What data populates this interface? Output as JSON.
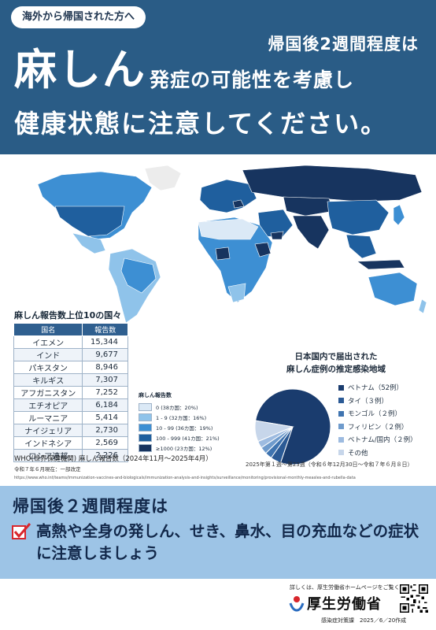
{
  "header": {
    "pill": "海外から帰国された方へ",
    "line1": "帰国後2週間程度は",
    "measles": "麻しん",
    "line2": "発症の可能性を考慮し",
    "line3": "健康状態に注意してください。"
  },
  "ranking": {
    "title": "麻しん報告数上位10の国々",
    "col_country": "国名",
    "col_count": "報告数",
    "rows": [
      {
        "country": "イエメン",
        "count": "15,344"
      },
      {
        "country": "インド",
        "count": "9,677"
      },
      {
        "country": "パキスタン",
        "count": "8,946"
      },
      {
        "country": "キルギス",
        "count": "7,307"
      },
      {
        "country": "アフガニスタン",
        "count": "7,252"
      },
      {
        "country": "エチオピア",
        "count": "6,184"
      },
      {
        "country": "ルーマニア",
        "count": "5,414"
      },
      {
        "country": "ナイジェリア",
        "count": "2,730"
      },
      {
        "country": "インドネシア",
        "count": "2,569"
      },
      {
        "country": "ロシア連邦",
        "count": "2,226"
      }
    ],
    "source": "WHO(世界保健機関) 麻しん報告数（2024年11月～2025年4月）",
    "note": "令和７年６月現在：一部改定"
  },
  "map_legend": {
    "title": "麻しん報告数",
    "items": [
      {
        "label": "0 (38カ国：20%)",
        "color": "#dbe9f6"
      },
      {
        "label": "1 - 9 (32カ国：16%)",
        "color": "#8fc3ea"
      },
      {
        "label": "10 - 99 (36カ国：19%)",
        "color": "#3d8fd3"
      },
      {
        "label": "100 - 999 (41カ国：21%)",
        "color": "#1f5f9e"
      },
      {
        "label": "≥1000 (23カ国：12%)",
        "color": "#17345f"
      }
    ]
  },
  "domestic": {
    "title_line1": "日本国内で届出された",
    "title_line2": "麻しん症例の推定感染地域",
    "period": "2025年第１週～第23週（令和６年12月30日～令和７年６月８日）",
    "legend": [
      {
        "label": "ベトナム（52例）",
        "color": "#1a3c6e"
      },
      {
        "label": "タイ（３例）",
        "color": "#2b5a95"
      },
      {
        "label": "モンゴル（２例）",
        "color": "#3f74b0"
      },
      {
        "label": "フィリピン（２例）",
        "color": "#6f9bcc"
      },
      {
        "label": "ベトナム/国内（２例）",
        "color": "#9dbbe0"
      },
      {
        "label": "その他",
        "color": "#c7d6ea"
      }
    ]
  },
  "chart_data": {
    "type": "pie",
    "title": "日本国内で届出された麻しん症例の推定感染地域",
    "slices": [
      {
        "label": "ベトナム",
        "value": 52
      },
      {
        "label": "タイ",
        "value": 3
      },
      {
        "label": "モンゴル",
        "value": 2
      },
      {
        "label": "フィリピン",
        "value": 2
      },
      {
        "label": "ベトナム/国内",
        "value": 2
      },
      {
        "label": "その他",
        "value": 6
      }
    ]
  },
  "url": "https://www.who.int/teams/immunization-vaccines-and-biologicals/immunization-analysis-and-insights/surveillance/monitoring/provisional-monthly-measles-and-rubella-data",
  "bottom": {
    "title": "帰国後２週間程度は",
    "text": "高熱や全身の発しん、せき、鼻水、目の充血などの症状に注意しましょう"
  },
  "footer": {
    "more": "詳しくは、厚生労働省ホームページをご覧ください",
    "ministry": "厚生労働省",
    "dept": "感染症対策課　2025／6／20作成"
  },
  "colors": {
    "header_bg": "#2a5c86",
    "bottom_bg": "#9dc4e6",
    "check_red": "#d8262c"
  }
}
